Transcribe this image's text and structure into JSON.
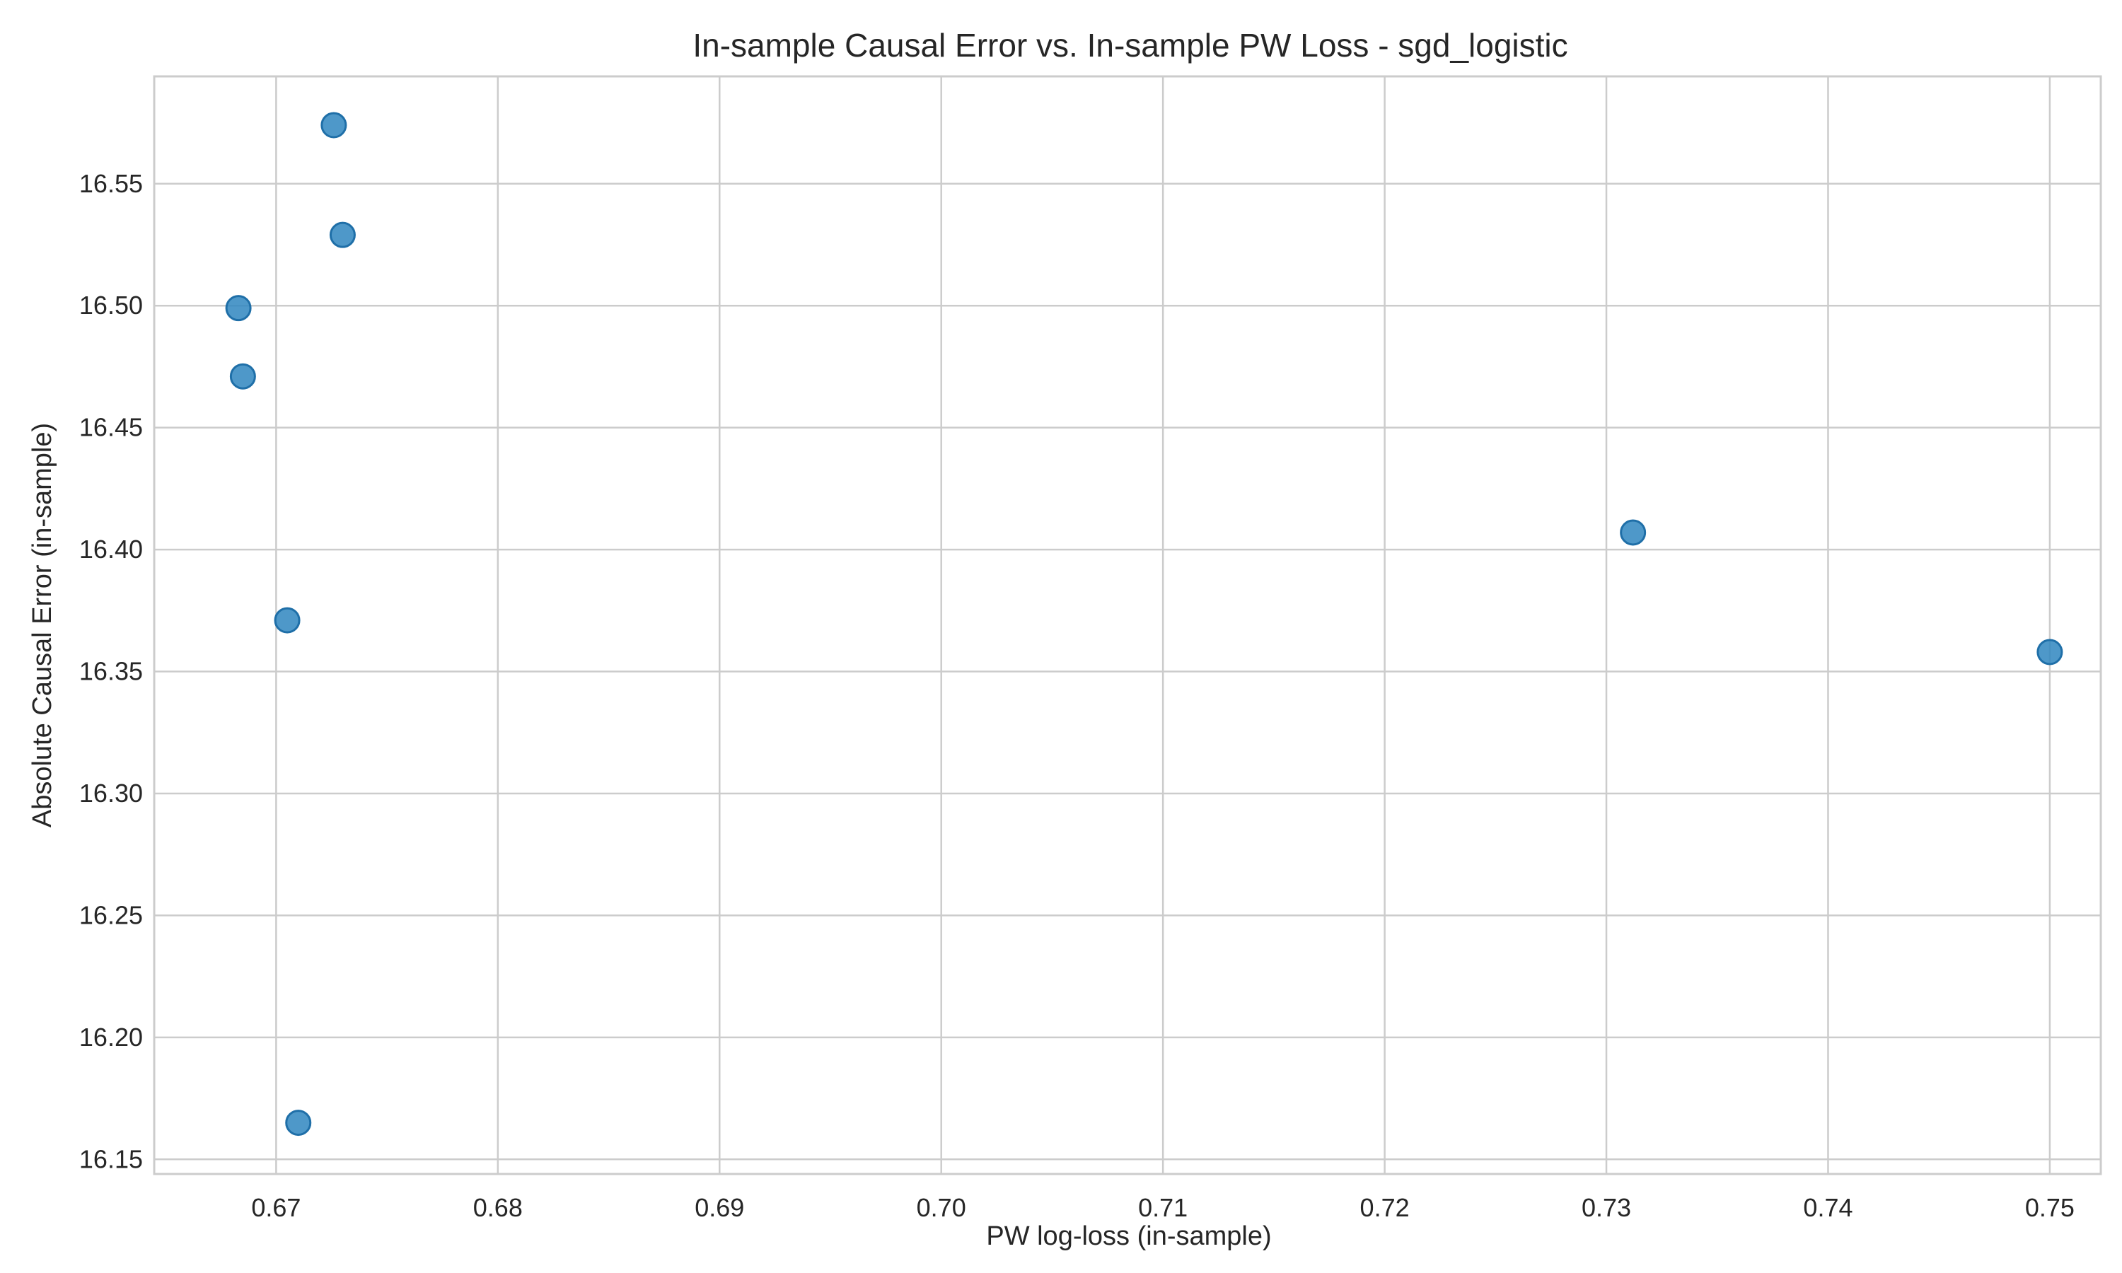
{
  "chart_data": {
    "type": "scatter",
    "title": "In-sample Causal Error vs. In-sample PW Loss - sgd_logistic",
    "xlabel": "PW log-loss (in-sample)",
    "ylabel": "Absolute Causal Error (in-sample)",
    "xlim": [
      0.6645,
      0.7523
    ],
    "ylim": [
      16.144,
      16.594
    ],
    "xticks": [
      "0.67",
      "0.68",
      "0.69",
      "0.70",
      "0.71",
      "0.72",
      "0.73",
      "0.74",
      "0.75"
    ],
    "yticks": [
      "16.15",
      "16.20",
      "16.25",
      "16.30",
      "16.35",
      "16.40",
      "16.45",
      "16.50",
      "16.55"
    ],
    "grid": true,
    "marker_color": "#2f86c0",
    "marker_edge_color": "#1f6fa8",
    "points": [
      {
        "x": 0.6726,
        "y": 16.574
      },
      {
        "x": 0.673,
        "y": 16.529
      },
      {
        "x": 0.6683,
        "y": 16.499
      },
      {
        "x": 0.6685,
        "y": 16.471
      },
      {
        "x": 0.7312,
        "y": 16.407
      },
      {
        "x": 0.6705,
        "y": 16.371
      },
      {
        "x": 0.75,
        "y": 16.358
      },
      {
        "x": 0.671,
        "y": 16.165
      }
    ]
  }
}
